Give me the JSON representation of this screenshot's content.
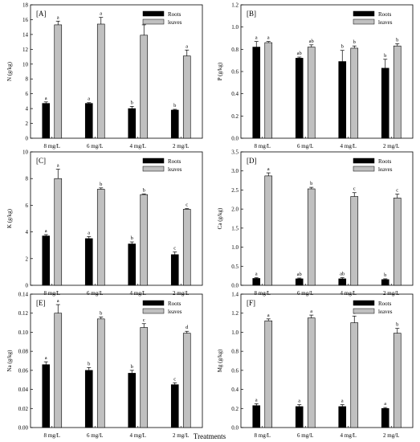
{
  "figure": {
    "xlabel": "Treatments",
    "colors": {
      "roots": "#000000",
      "leaves": "#c0c0c0"
    }
  },
  "chart_data": [
    {
      "type": "bar",
      "panel_label": "[A]",
      "ylabel": "N (g/kg)",
      "categories": [
        "8 mg/L",
        "6 mg/L",
        "4 mg/L",
        "2 mg/L"
      ],
      "ylim": [
        0,
        18
      ],
      "yticks": [
        0,
        2,
        4,
        6,
        8,
        10,
        12,
        14,
        16,
        18
      ],
      "legend_position": "top-right",
      "grid": false,
      "series": [
        {
          "name": "Roots",
          "values": [
            4.7,
            4.7,
            4.0,
            3.8
          ],
          "errors": [
            0.2,
            0.1,
            0.3,
            0.1
          ],
          "letters": [
            "a",
            "a",
            "b",
            "b"
          ]
        },
        {
          "name": "leaves",
          "values": [
            15.3,
            15.4,
            13.9,
            11.1
          ],
          "errors": [
            0.5,
            0.9,
            1.4,
            0.8
          ],
          "letters": [
            "a",
            "a",
            "a",
            "a"
          ]
        }
      ]
    },
    {
      "type": "bar",
      "panel_label": "[B]",
      "ylabel": "P (g/kg)",
      "categories": [
        "8 mg/L",
        "6 mg/L",
        "4 mg/L",
        "2 mg/L"
      ],
      "ylim": [
        0,
        1.2
      ],
      "yticks": [
        0.0,
        0.2,
        0.4,
        0.6,
        0.8,
        1.0,
        1.2
      ],
      "legend_position": "top-right",
      "grid": false,
      "series": [
        {
          "name": "Roots",
          "values": [
            0.82,
            0.72,
            0.69,
            0.63
          ],
          "errors": [
            0.05,
            0.01,
            0.1,
            0.08
          ],
          "letters": [
            "a",
            "ab",
            "b",
            "b"
          ]
        },
        {
          "name": "leaves",
          "values": [
            0.86,
            0.82,
            0.81,
            0.83
          ],
          "errors": [
            0.01,
            0.02,
            0.02,
            0.02
          ],
          "letters": [
            "a",
            "ab",
            "b",
            "b"
          ]
        }
      ]
    },
    {
      "type": "bar",
      "panel_label": "[C]",
      "ylabel": "K (g/kg)",
      "categories": [
        "8 mg/L",
        "6 mg/L",
        "4 mg/L",
        "2 mg/L"
      ],
      "ylim": [
        0,
        10
      ],
      "yticks": [
        0,
        2,
        4,
        6,
        8,
        10
      ],
      "legend_position": "top-right",
      "grid": false,
      "series": [
        {
          "name": "Roots",
          "values": [
            3.7,
            3.5,
            3.1,
            2.3
          ],
          "errors": [
            0.1,
            0.15,
            0.15,
            0.2
          ],
          "letters": [
            "a",
            "a",
            "b",
            "c"
          ]
        },
        {
          "name": "leaves",
          "values": [
            8.0,
            7.2,
            6.8,
            5.7
          ],
          "errors": [
            0.7,
            0.1,
            0.05,
            0.05
          ],
          "letters": [
            "a",
            "b",
            "b",
            "c"
          ]
        }
      ]
    },
    {
      "type": "bar",
      "panel_label": "[D]",
      "ylabel": "Ca (g/kg)",
      "categories": [
        "8 mg/L",
        "6 mg/L",
        "4 mg/L",
        "2 mg/L"
      ],
      "ylim": [
        0,
        3.5
      ],
      "yticks": [
        0.0,
        0.5,
        1.0,
        1.5,
        2.0,
        2.5,
        3.0,
        3.5
      ],
      "legend_position": "top-right",
      "grid": false,
      "series": [
        {
          "name": "Roots",
          "values": [
            0.18,
            0.17,
            0.17,
            0.15
          ],
          "errors": [
            0.02,
            0.02,
            0.03,
            0.02
          ],
          "letters": [
            "a",
            "ab",
            "ab",
            "b"
          ]
        },
        {
          "name": "leaves",
          "values": [
            2.87,
            2.53,
            2.33,
            2.29
          ],
          "errors": [
            0.08,
            0.04,
            0.1,
            0.1
          ],
          "letters": [
            "a",
            "b",
            "c",
            "c"
          ]
        }
      ]
    },
    {
      "type": "bar",
      "panel_label": "[E]",
      "ylabel": "Na (g/kg)",
      "categories": [
        "8 mg/L",
        "6 mg/L",
        "4 mg/L",
        "2 mg/L"
      ],
      "ylim": [
        0,
        0.14
      ],
      "yticks": [
        0.0,
        0.02,
        0.04,
        0.06,
        0.08,
        0.1,
        0.12,
        0.14
      ],
      "legend_position": "top-right",
      "grid": false,
      "series": [
        {
          "name": "Roots",
          "values": [
            0.066,
            0.06,
            0.057,
            0.045
          ],
          "errors": [
            0.003,
            0.003,
            0.003,
            0.002
          ],
          "letters": [
            "a",
            "b",
            "b",
            "c"
          ]
        },
        {
          "name": "leaves",
          "values": [
            0.12,
            0.114,
            0.105,
            0.099
          ],
          "errors": [
            0.009,
            0.002,
            0.004,
            0.002
          ],
          "letters": [
            "a",
            "b",
            "c",
            "d"
          ]
        }
      ]
    },
    {
      "type": "bar",
      "panel_label": "[F]",
      "ylabel": "Mg (g/kg)",
      "categories": [
        "8 mg/L",
        "6 mg/L",
        "4 mg/L",
        "2 mg/L"
      ],
      "ylim": [
        0,
        1.4
      ],
      "yticks": [
        0.0,
        0.2,
        0.4,
        0.6,
        0.8,
        1.0,
        1.2,
        1.4
      ],
      "legend_position": "top-right",
      "grid": false,
      "series": [
        {
          "name": "Roots",
          "values": [
            0.23,
            0.22,
            0.22,
            0.2
          ],
          "errors": [
            0.02,
            0.02,
            0.02,
            0.01
          ],
          "letters": [
            "a",
            "a",
            "a",
            "a"
          ]
        },
        {
          "name": "leaves",
          "values": [
            1.12,
            1.15,
            1.1,
            0.99
          ],
          "errors": [
            0.02,
            0.03,
            0.07,
            0.05
          ],
          "letters": [
            "a",
            "a",
            "a",
            "b"
          ]
        }
      ]
    }
  ]
}
